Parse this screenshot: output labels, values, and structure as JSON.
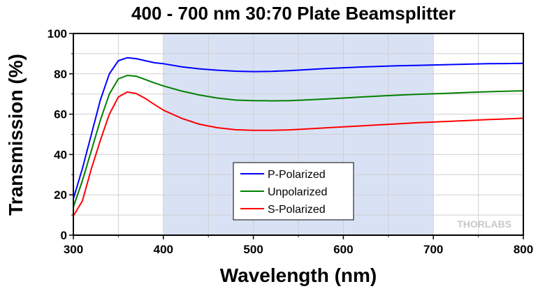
{
  "chart_data": {
    "type": "line",
    "title": "400 - 700 nm 30:70 Plate Beamsplitter",
    "xlabel": "Wavelength (nm)",
    "ylabel": "Transmission (%)",
    "xlim": [
      300,
      800
    ],
    "ylim": [
      0,
      100
    ],
    "xticks": [
      300,
      400,
      500,
      600,
      700,
      800
    ],
    "yticks": [
      0,
      20,
      40,
      60,
      80,
      100
    ],
    "grid": true,
    "shaded_region": [
      400,
      700
    ],
    "shade_color": "#d9e2f5",
    "legend_position": "lower-center",
    "watermark": "THORLABS",
    "x": [
      300,
      310,
      320,
      330,
      340,
      350,
      360,
      370,
      380,
      390,
      400,
      420,
      440,
      460,
      480,
      500,
      520,
      540,
      560,
      580,
      600,
      620,
      640,
      660,
      680,
      700,
      720,
      740,
      760,
      780,
      800
    ],
    "series": [
      {
        "name": "P-Polarized",
        "color": "#0000ff",
        "values": [
          18,
          33,
          50,
          67,
          80,
          86.5,
          88,
          87.5,
          86.5,
          85.5,
          85,
          83.5,
          82.5,
          81.8,
          81.3,
          81.1,
          81.2,
          81.6,
          82.1,
          82.6,
          83,
          83.4,
          83.7,
          84,
          84.2,
          84.4,
          84.6,
          84.8,
          85,
          85.1,
          85.2
        ]
      },
      {
        "name": "Unpolarized",
        "color": "#008000",
        "values": [
          14,
          27,
          42,
          57,
          70,
          77.5,
          79.2,
          78.8,
          77.2,
          75.5,
          74,
          71.5,
          69.5,
          68,
          67,
          66.7,
          66.6,
          66.7,
          67.1,
          67.5,
          68,
          68.5,
          69,
          69.4,
          69.8,
          70.1,
          70.4,
          70.8,
          71.1,
          71.4,
          71.6
        ]
      },
      {
        "name": "S-Polarized",
        "color": "#ff0000",
        "values": [
          9.5,
          17,
          33,
          47,
          60,
          68.5,
          71,
          70.2,
          67.8,
          64.8,
          62,
          58,
          55,
          53.3,
          52.3,
          52,
          52,
          52.2,
          52.7,
          53.2,
          53.7,
          54.2,
          54.7,
          55.2,
          55.7,
          56.1,
          56.5,
          56.9,
          57.3,
          57.6,
          58
        ]
      }
    ]
  }
}
